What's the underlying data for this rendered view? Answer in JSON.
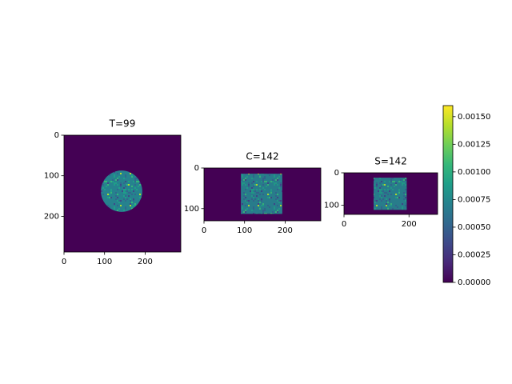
{
  "chart_data": [
    {
      "type": "image",
      "title": "T=99",
      "xlim": [
        0,
        288
      ],
      "ylim": [
        288,
        0
      ],
      "xticks": [
        0,
        100,
        200
      ],
      "yticks": [
        0,
        100,
        200
      ]
    },
    {
      "type": "image",
      "title": "C=142",
      "xlim": [
        0,
        288
      ],
      "ylim": [
        130,
        0
      ],
      "xticks": [
        0,
        100,
        200
      ],
      "yticks": [
        0,
        100
      ]
    },
    {
      "type": "image",
      "title": "S=142",
      "xlim": [
        0,
        288
      ],
      "ylim": [
        128,
        0
      ],
      "xticks": [
        0,
        200
      ],
      "yticks": [
        0,
        100
      ]
    },
    {
      "type": "colorbar",
      "ylim": [
        0,
        0.0016
      ],
      "yticks": [
        {
          "value": 0,
          "label": "0.00000"
        },
        {
          "value": 0.00025,
          "label": "0.00025"
        },
        {
          "value": 0.0005,
          "label": "0.00050"
        },
        {
          "value": 0.00075,
          "label": "0.00075"
        },
        {
          "value": 0.001,
          "label": "0.00100"
        },
        {
          "value": 0.00125,
          "label": "0.00125"
        },
        {
          "value": 0.0015,
          "label": "0.00150"
        }
      ],
      "colors": [
        "#440154",
        "#482878",
        "#3e4989",
        "#31688e",
        "#26828e",
        "#1f9e89",
        "#35b779",
        "#6ece58",
        "#b5de2b",
        "#fde725"
      ]
    }
  ]
}
